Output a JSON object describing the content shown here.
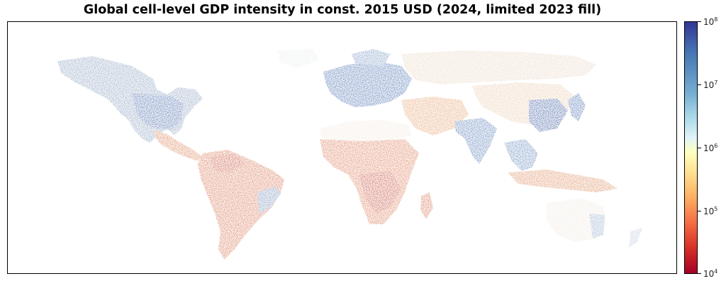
{
  "map": {
    "title": "Global cell-level GDP intensity in const. 2015 USD (2024, limited 2023 fill)",
    "colorbar": {
      "scale": "log",
      "colormap": [
        "#a50026",
        "#d73027",
        "#f46d43",
        "#fdae61",
        "#fee090",
        "#ffffbf",
        "#e0f3f8",
        "#abd9e9",
        "#74add1",
        "#4575b4",
        "#313695"
      ],
      "ticks": [
        {
          "base": "10",
          "exp": "8"
        },
        {
          "base": "10",
          "exp": "7"
        },
        {
          "base": "10",
          "exp": "6"
        },
        {
          "base": "10",
          "exp": "5"
        },
        {
          "base": "10",
          "exp": "4"
        }
      ],
      "range": [
        10000,
        100000000
      ]
    }
  }
}
